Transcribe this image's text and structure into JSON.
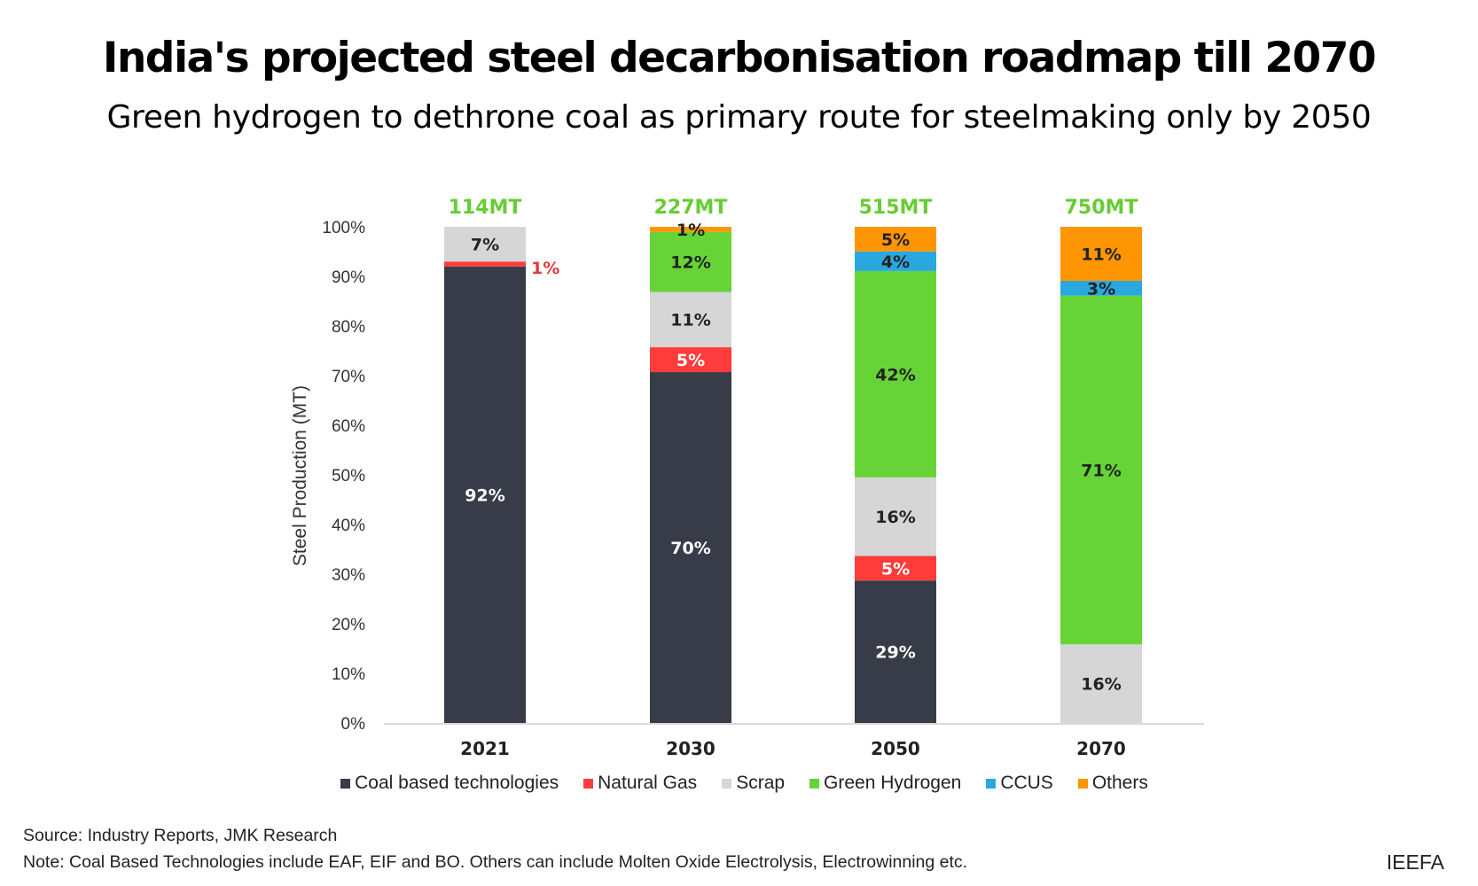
{
  "title": "India's projected steel decarbonisation roadmap till 2070",
  "subtitle": "Green hydrogen to dethrone coal as primary route for steelmaking only by 2050",
  "source": "Source: Industry Reports, JMK Research",
  "note": "Note: Coal Based Technologies include EAF, EIF and BO. Others can include Molten Oxide Electrolysis, Electrowinning etc.",
  "brand": "IEEFA",
  "chart_data": {
    "type": "bar",
    "stacked": true,
    "title": "",
    "xlabel": "",
    "ylabel": "Steel Production (MT)",
    "ylim": [
      0,
      100
    ],
    "yticks": [
      "0%",
      "10%",
      "20%",
      "30%",
      "40%",
      "50%",
      "60%",
      "70%",
      "80%",
      "90%",
      "100%"
    ],
    "categories": [
      "2021",
      "2030",
      "2050",
      "2070"
    ],
    "totals": [
      "114MT",
      "227MT",
      "515MT",
      "750MT"
    ],
    "totals_color": "#66cc33",
    "legend_position": "bottom",
    "grid": false,
    "series": [
      {
        "name": "Coal based technologies",
        "color": "#373c48",
        "values": [
          92,
          70,
          29,
          0
        ]
      },
      {
        "name": "Natural Gas",
        "color": "#ff3c3c",
        "values": [
          1,
          5,
          5,
          0
        ]
      },
      {
        "name": "Scrap",
        "color": "#d6d6d6",
        "values": [
          7,
          11,
          16,
          16
        ]
      },
      {
        "name": "Green Hydrogen",
        "color": "#66d436",
        "values": [
          0,
          12,
          42,
          71
        ]
      },
      {
        "name": "CCUS",
        "color": "#29a8e0",
        "values": [
          0,
          0,
          4,
          3
        ]
      },
      {
        "name": "Others",
        "color": "#ff9500",
        "values": [
          0,
          1,
          5,
          11
        ]
      }
    ]
  }
}
